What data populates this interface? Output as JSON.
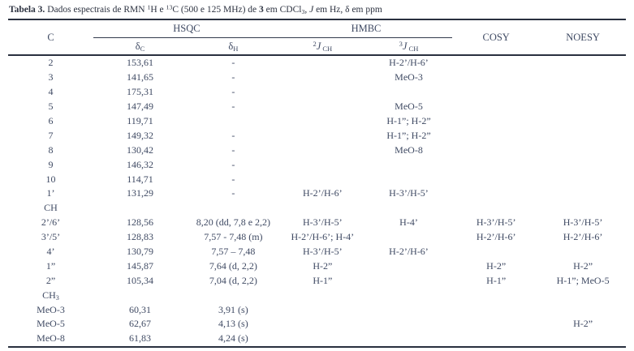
{
  "palette": {
    "background": "#ffffff",
    "text": "#3f4a63",
    "title_text": "#2c3240",
    "rule": "#29303f"
  },
  "title": {
    "segments": [
      {
        "t": "Tabela 3.",
        "b": true
      },
      {
        "t": " Dados espectrais de RMN "
      },
      {
        "t": "1",
        "sup": true
      },
      {
        "t": "H e "
      },
      {
        "t": "13",
        "sup": true
      },
      {
        "t": "C (500 e 125 MHz) de "
      },
      {
        "t": "3",
        "b": true
      },
      {
        "t": " em CDCl"
      },
      {
        "t": "3",
        "sub": true
      },
      {
        "t": ", "
      },
      {
        "t": "J",
        "i": true
      },
      {
        "t": " em Hz, δ em ppm"
      }
    ]
  },
  "table": {
    "column_keys": [
      "c",
      "delta-c",
      "delta-h",
      "2jch",
      "3jch",
      "cosy",
      "noesy"
    ],
    "header": {
      "c": "C",
      "hsqc_group": "HSQC",
      "hmbc_group": "HMBC",
      "cosy": "COSY",
      "noesy": "NOESY"
    },
    "subheaders": [
      [
        {
          "t": "δ"
        },
        {
          "t": "C",
          "sub": true
        }
      ],
      [
        {
          "t": "δ"
        },
        {
          "t": "H",
          "sub": true
        }
      ],
      [
        {
          "t": "2",
          "sup": true
        },
        {
          "t": "J",
          "i": true
        },
        {
          "t": " CH",
          "sub": true
        }
      ],
      [
        {
          "t": "3",
          "sup": true
        },
        {
          "t": "J",
          "i": true
        },
        {
          "t": " CH",
          "sub": true
        }
      ]
    ],
    "rows": [
      {
        "cells": [
          "2",
          "153,61",
          "-",
          "",
          "H-2’/H-6’",
          "",
          ""
        ]
      },
      {
        "cells": [
          "3",
          "141,65",
          "-",
          "",
          "MeO-3",
          "",
          ""
        ]
      },
      {
        "cells": [
          "4",
          "175,31",
          "-",
          "",
          "",
          "",
          ""
        ]
      },
      {
        "cells": [
          "5",
          "147,49",
          "-",
          "",
          "MeO-5",
          "",
          ""
        ]
      },
      {
        "cells": [
          "6",
          "119,71",
          "",
          "",
          "H-1”; H-2”",
          "",
          ""
        ]
      },
      {
        "cells": [
          "7",
          "149,32",
          "-",
          "",
          "H-1”; H-2”",
          "",
          ""
        ]
      },
      {
        "cells": [
          "8",
          "130,42",
          "-",
          "",
          "MeO-8",
          "",
          ""
        ]
      },
      {
        "cells": [
          "9",
          "146,32",
          "-",
          "",
          "",
          "",
          ""
        ]
      },
      {
        "cells": [
          "10",
          "114,71",
          "-",
          "",
          "",
          "",
          ""
        ]
      },
      {
        "cells": [
          "1’",
          "131,29",
          "-",
          "H-2’/H-6’",
          "H-3’/H-5’",
          "",
          ""
        ]
      },
      {
        "cells": [
          "CH",
          "",
          "",
          "",
          "",
          "",
          ""
        ]
      },
      {
        "cells": [
          "2’/6’",
          "128,56",
          "8,20 (dd, 7,8 e 2,2)",
          "H-3’/H-5’",
          "H-4’",
          "H-3’/H-5’",
          "H-3’/H-5’"
        ]
      },
      {
        "cells": [
          "3’/5’",
          "128,83",
          "7,57 - 7,48 (m)",
          "H-2’/H-6’; H-4’",
          "",
          "H-2’/H-6’",
          "H-2’/H-6’"
        ]
      },
      {
        "cells": [
          "4’",
          "130,79",
          "7,57 – 7,48",
          "H-3’/H-5’",
          "H-2’/H-6’",
          "",
          ""
        ]
      },
      {
        "cells": [
          "1”",
          "145,87",
          "7,64 (d, 2,2)",
          "H-2”",
          "",
          "H-2”",
          "H-2”"
        ]
      },
      {
        "cells": [
          "2”",
          "105,34",
          "7,04 (d, 2,2)",
          "H-1”",
          "",
          "H-1”",
          "H-1”; MeO-5"
        ]
      },
      {
        "cells": [
          [
            "CH",
            {
              "t": "3",
              "sub": true
            }
          ],
          "",
          "",
          "",
          "",
          "",
          ""
        ]
      },
      {
        "cells": [
          "MeO-3",
          "60,31",
          "3,91 (s)",
          "",
          "",
          "",
          ""
        ]
      },
      {
        "cells": [
          "MeO-5",
          "62,67",
          "4,13 (s)",
          "",
          "",
          "",
          "H-2”"
        ]
      },
      {
        "cells": [
          "MeO-8",
          "61,83",
          "4,24 (s)",
          "",
          "",
          "",
          ""
        ]
      }
    ]
  }
}
